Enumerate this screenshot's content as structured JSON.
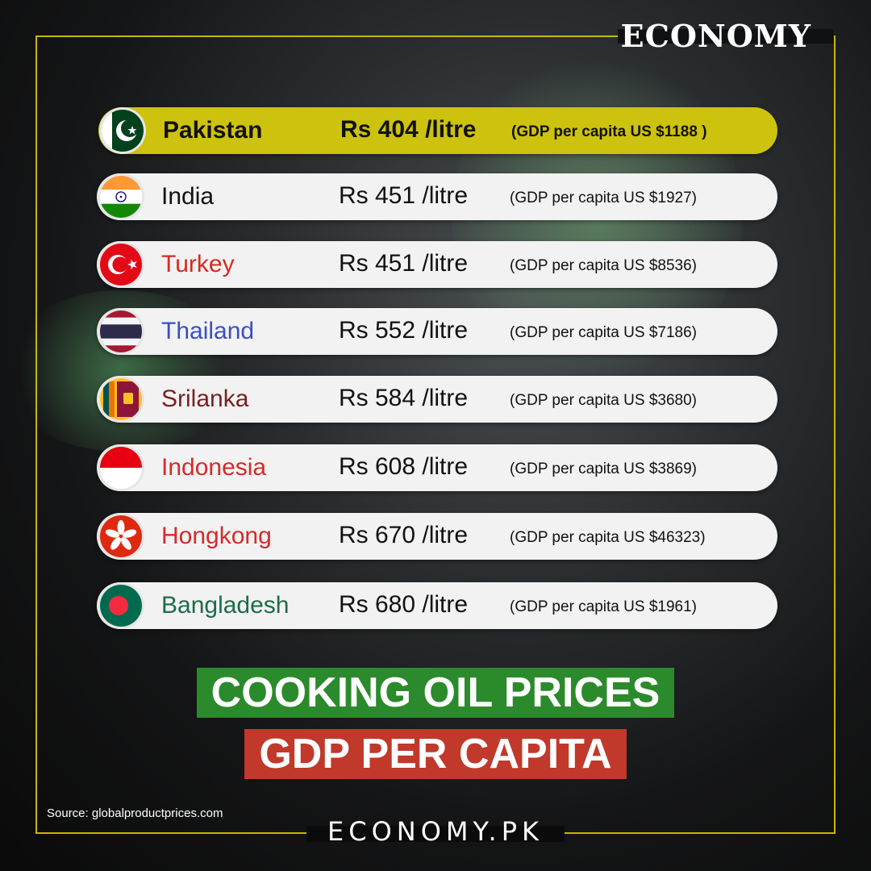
{
  "brand": {
    "top": "ECONOMY",
    "bottom": "ECONOMY.PK"
  },
  "rows": [
    {
      "country": "Pakistan",
      "price": "Rs 404 /litre",
      "gdp": "(GDP per capita US $1188 )",
      "country_color": "#111111",
      "flag": "pakistan-flag"
    },
    {
      "country": "India",
      "price": "Rs 451 /litre",
      "gdp": "(GDP per capita US $1927)",
      "country_color": "#111111",
      "flag": "india-flag"
    },
    {
      "country": "Turkey",
      "price": "Rs 451 /litre",
      "gdp": "(GDP per capita US $8536)",
      "country_color": "#d62a1e",
      "flag": "turkey-flag"
    },
    {
      "country": "Thailand",
      "price": "Rs 552 /litre",
      "gdp": "(GDP per capita US $7186)",
      "country_color": "#3a4fc2",
      "flag": "thailand-flag"
    },
    {
      "country": "Srilanka",
      "price": "Rs 584 /litre",
      "gdp": "(GDP per capita US $3680)",
      "country_color": "#7a1f22",
      "flag": "srilanka-flag"
    },
    {
      "country": "Indonesia",
      "price": "Rs 608 /litre",
      "gdp": "(GDP per capita US $3869)",
      "country_color": "#d62a2a",
      "flag": "indonesia-flag"
    },
    {
      "country": "Hongkong",
      "price": "Rs 670 /litre",
      "gdp": "(GDP per capita US $46323)",
      "country_color": "#d62a2a",
      "flag": "hongkong-flag"
    },
    {
      "country": "Bangladesh",
      "price": "Rs 680 /litre",
      "gdp": "(GDP per capita US $1961)",
      "country_color": "#1e6b4a",
      "flag": "bangladesh-flag"
    }
  ],
  "titles": {
    "line1": "COOKING OIL PRICES",
    "line2": "GDP PER CAPITA"
  },
  "source": "Source: globalproductprices.com",
  "colors": {
    "frame": "#c9b600",
    "highlight": "#cdc20d",
    "title1_bg": "#2b8a2b",
    "title2_bg": "#c0392b"
  }
}
